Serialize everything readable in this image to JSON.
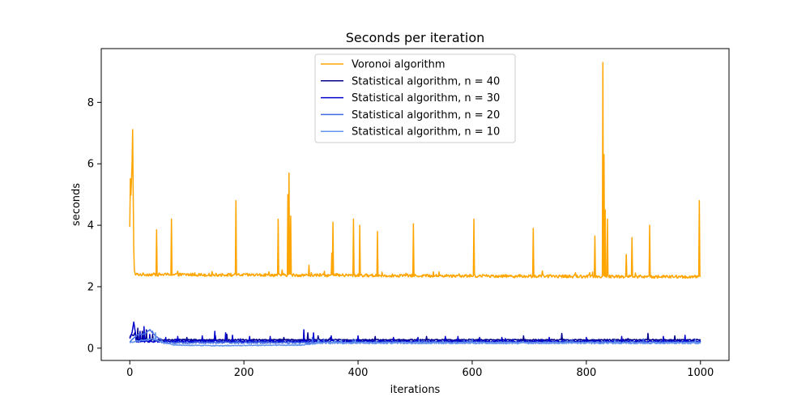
{
  "chart_data": {
    "type": "line",
    "title": "Seconds per iteration",
    "xlabel": "iterations",
    "ylabel": "seconds",
    "xlim": [
      -50,
      1050
    ],
    "ylim": [
      -0.4,
      9.75
    ],
    "xticks": [
      0,
      200,
      400,
      600,
      800,
      1000
    ],
    "yticks": [
      0,
      2,
      4,
      6,
      8
    ],
    "grid": false,
    "legend_position": "top-center",
    "series": [
      {
        "name": "Voronoi algorithm",
        "color": "#ffa500",
        "baseline": 2.4,
        "noise": 0.05,
        "trend": -0.08,
        "start": [
          [
            0,
            3.95
          ],
          [
            1,
            5.5
          ],
          [
            2,
            5.0
          ],
          [
            3,
            5.5
          ],
          [
            4,
            6.0
          ],
          [
            5,
            7.1
          ],
          [
            6,
            5.0
          ],
          [
            7,
            3.2
          ],
          [
            8,
            2.55
          ],
          [
            9,
            2.45
          ]
        ],
        "spikes": [
          [
            47,
            3.85
          ],
          [
            73,
            4.2
          ],
          [
            186,
            4.8
          ],
          [
            260,
            4.2
          ],
          [
            267,
            2.55
          ],
          [
            277,
            5.0
          ],
          [
            279,
            5.7
          ],
          [
            282,
            4.3
          ],
          [
            314,
            2.7
          ],
          [
            354,
            3.1
          ],
          [
            356,
            4.1
          ],
          [
            392,
            4.2
          ],
          [
            403,
            4.0
          ],
          [
            434,
            3.8
          ],
          [
            497,
            4.05
          ],
          [
            603,
            4.2
          ],
          [
            707,
            3.9
          ],
          [
            815,
            3.65
          ],
          [
            829,
            9.3
          ],
          [
            831,
            6.3
          ],
          [
            833,
            4.5
          ],
          [
            837,
            4.2
          ],
          [
            870,
            3.05
          ],
          [
            880,
            3.6
          ],
          [
            911,
            4.0
          ],
          [
            998,
            4.8
          ]
        ]
      },
      {
        "name": "Statistical algorithm, n = 40",
        "color": "#00008b",
        "baseline": 0.27,
        "noise": 0.02,
        "trend": 0,
        "start": [
          [
            0,
            0.35
          ],
          [
            3,
            0.45
          ],
          [
            6,
            0.4
          ],
          [
            9,
            0.5
          ],
          [
            12,
            0.3
          ]
        ],
        "spikes": [
          [
            14,
            0.65
          ],
          [
            22,
            0.55
          ],
          [
            29,
            0.6
          ],
          [
            40,
            0.45
          ],
          [
            100,
            0.35
          ],
          [
            150,
            0.4
          ],
          [
            170,
            0.45
          ],
          [
            270,
            0.35
          ],
          [
            312,
            0.5
          ],
          [
            330,
            0.4
          ],
          [
            430,
            0.38
          ],
          [
            520,
            0.38
          ],
          [
            690,
            0.4
          ],
          [
            757,
            0.48
          ],
          [
            908,
            0.48
          ],
          [
            955,
            0.4
          ]
        ]
      },
      {
        "name": "Statistical algorithm, n = 30",
        "color": "#0000cd",
        "baseline": 0.22,
        "noise": 0.03,
        "trend": 0,
        "start": [
          [
            0,
            0.3
          ],
          [
            4,
            0.5
          ],
          [
            7,
            0.85
          ],
          [
            10,
            0.5
          ]
        ],
        "spikes": [
          [
            18,
            0.55
          ],
          [
            25,
            0.7
          ],
          [
            35,
            0.45
          ],
          [
            63,
            0.35
          ],
          [
            84,
            0.38
          ],
          [
            127,
            0.4
          ],
          [
            149,
            0.55
          ],
          [
            168,
            0.5
          ],
          [
            180,
            0.42
          ],
          [
            210,
            0.38
          ],
          [
            246,
            0.38
          ],
          [
            305,
            0.6
          ],
          [
            322,
            0.5
          ],
          [
            353,
            0.4
          ],
          [
            400,
            0.4
          ],
          [
            462,
            0.35
          ],
          [
            505,
            0.35
          ],
          [
            553,
            0.38
          ],
          [
            575,
            0.38
          ],
          [
            613,
            0.35
          ],
          [
            652,
            0.35
          ],
          [
            735,
            0.35
          ],
          [
            800,
            0.35
          ],
          [
            862,
            0.38
          ],
          [
            935,
            0.38
          ],
          [
            973,
            0.42
          ]
        ]
      },
      {
        "name": "Statistical algorithm, n = 20",
        "color": "#4169e1",
        "baseline": 0.18,
        "noise": 0.03,
        "trend": 0,
        "start": [
          [
            0,
            0.2
          ],
          [
            5,
            0.3
          ],
          [
            15,
            0.45
          ],
          [
            25,
            0.45
          ],
          [
            35,
            0.6
          ],
          [
            45,
            0.4
          ],
          [
            55,
            0.28
          ]
        ],
        "spikes": [
          [
            40,
            0.55
          ],
          [
            320,
            0.35
          ],
          [
            340,
            0.3
          ],
          [
            600,
            0.3
          ],
          [
            900,
            0.3
          ]
        ]
      },
      {
        "name": "Statistical algorithm, n = 10",
        "color": "#6495ed",
        "baseline": 0.17,
        "noise": 0.03,
        "trend": 0,
        "start": [
          [
            0,
            0.18
          ],
          [
            10,
            0.22
          ],
          [
            20,
            0.25
          ],
          [
            40,
            0.3
          ],
          [
            60,
            0.18
          ],
          [
            80,
            0.1
          ],
          [
            150,
            0.08
          ],
          [
            250,
            0.1
          ],
          [
            300,
            0.1
          ],
          [
            350,
            0.2
          ]
        ],
        "spikes": [
          [
            45,
            0.5
          ],
          [
            330,
            0.28
          ]
        ]
      }
    ]
  }
}
